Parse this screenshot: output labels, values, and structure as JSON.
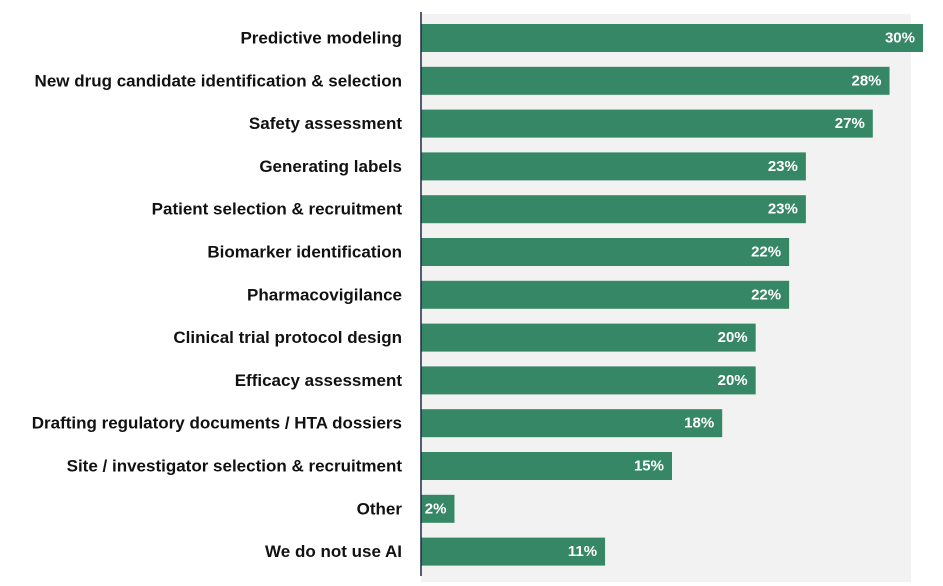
{
  "chart_data": {
    "type": "bar",
    "orientation": "horizontal",
    "title": "",
    "xlabel": "",
    "ylabel": "",
    "grid": false,
    "xlim": [
      0,
      30
    ],
    "bar_color": "#368765",
    "plot_background": "#f2f2f2",
    "axis_color": "#1f2a44",
    "categories": [
      "Predictive modeling",
      "New drug candidate identification & selection",
      "Safety assessment",
      "Generating labels",
      "Patient selection & recruitment",
      "Biomarker identification",
      "Pharmacovigilance",
      "Clinical trial protocol design",
      "Efficacy assessment",
      "Drafting regulatory documents / HTA dossiers",
      "Site / investigator selection & recruitment",
      "Other",
      "We do not use AI"
    ],
    "values": [
      30,
      28,
      27,
      23,
      23,
      22,
      22,
      20,
      20,
      18,
      15,
      2,
      11
    ],
    "value_labels": [
      "30%",
      "28%",
      "27%",
      "23%",
      "23%",
      "22%",
      "22%",
      "20%",
      "20%",
      "18%",
      "15%",
      "2%",
      "11%"
    ]
  }
}
